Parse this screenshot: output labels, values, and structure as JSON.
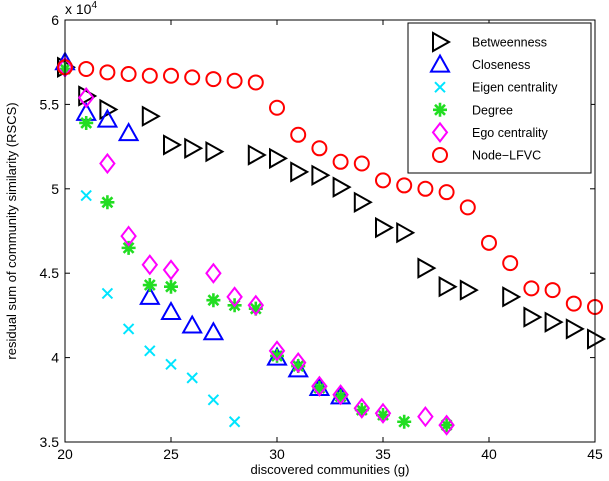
{
  "chart_data": {
    "type": "scatter",
    "title": "",
    "xlabel": "discovered communities (g)",
    "ylabel": "residual sum of community similarity (RSCS)",
    "exponent_label": "x 10",
    "exponent_power": "4",
    "xlim": [
      20,
      45
    ],
    "ylim": [
      3.5,
      6
    ],
    "x_ticks": [
      "20",
      "25",
      "30",
      "35",
      "40",
      "45"
    ],
    "y_ticks": [
      "3.5",
      "4",
      "4.5",
      "5",
      "5.5",
      "6"
    ],
    "legend_position": "top-right",
    "grid": false,
    "series": [
      {
        "name": "Betweenness",
        "marker": "triangle-right",
        "color": "#000000",
        "x": [
          20,
          21,
          22,
          24,
          25,
          26,
          27,
          29,
          30,
          31,
          32,
          33,
          34,
          35,
          36,
          37,
          38,
          39,
          41,
          42,
          43,
          44,
          45
        ],
        "y": [
          5.72,
          5.55,
          5.47,
          5.43,
          5.26,
          5.24,
          5.22,
          5.2,
          5.18,
          5.1,
          5.08,
          5.01,
          4.92,
          4.77,
          4.74,
          4.53,
          4.42,
          4.4,
          4.36,
          4.24,
          4.21,
          4.17,
          4.11
        ]
      },
      {
        "name": "Closeness",
        "marker": "triangle-up",
        "color": "#0000ff",
        "x": [
          20,
          21,
          22,
          23,
          24,
          25,
          26,
          27,
          30,
          31,
          32,
          33
        ],
        "y": [
          5.75,
          5.45,
          5.41,
          5.33,
          4.36,
          4.27,
          4.19,
          4.15,
          4.0,
          3.93,
          3.82,
          3.77
        ]
      },
      {
        "name": "Eigen centrality",
        "marker": "x",
        "color": "#00e5ff",
        "x": [
          21,
          22,
          23,
          24,
          25,
          26,
          27,
          28
        ],
        "y": [
          4.96,
          4.38,
          4.17,
          4.04,
          3.96,
          3.88,
          3.75,
          3.62
        ]
      },
      {
        "name": "Degree",
        "marker": "asterisk",
        "color": "#22dd22",
        "x": [
          20,
          21,
          22,
          23,
          24,
          25,
          27,
          28,
          29,
          30,
          31,
          32,
          33,
          34,
          35,
          36,
          38
        ],
        "y": [
          5.71,
          5.39,
          4.92,
          4.65,
          4.43,
          4.42,
          4.34,
          4.31,
          4.29,
          4.01,
          3.95,
          3.82,
          3.77,
          3.69,
          3.66,
          3.62,
          3.6
        ]
      },
      {
        "name": "Ego centrality",
        "marker": "diamond",
        "color": "#ff00ff",
        "x": [
          20,
          21,
          22,
          23,
          24,
          25,
          27,
          28,
          29,
          30,
          31,
          32,
          33,
          34,
          35,
          37,
          38
        ],
        "y": [
          5.72,
          5.54,
          5.15,
          4.72,
          4.55,
          4.52,
          4.5,
          4.36,
          4.31,
          4.04,
          3.97,
          3.83,
          3.78,
          3.7,
          3.67,
          3.65,
          3.6
        ]
      },
      {
        "name": "Node−LFVC",
        "marker": "circle",
        "color": "#ff0000",
        "x": [
          20,
          21,
          22,
          23,
          24,
          25,
          26,
          27,
          28,
          29,
          30,
          31,
          32,
          33,
          34,
          35,
          36,
          37,
          38,
          39,
          40,
          41,
          42,
          43,
          44,
          45
        ],
        "y": [
          5.72,
          5.71,
          5.69,
          5.68,
          5.67,
          5.67,
          5.66,
          5.65,
          5.64,
          5.63,
          5.48,
          5.32,
          5.24,
          5.16,
          5.15,
          5.05,
          5.02,
          5.0,
          4.98,
          4.89,
          4.68,
          4.56,
          4.41,
          4.4,
          4.32,
          4.3
        ]
      }
    ]
  }
}
